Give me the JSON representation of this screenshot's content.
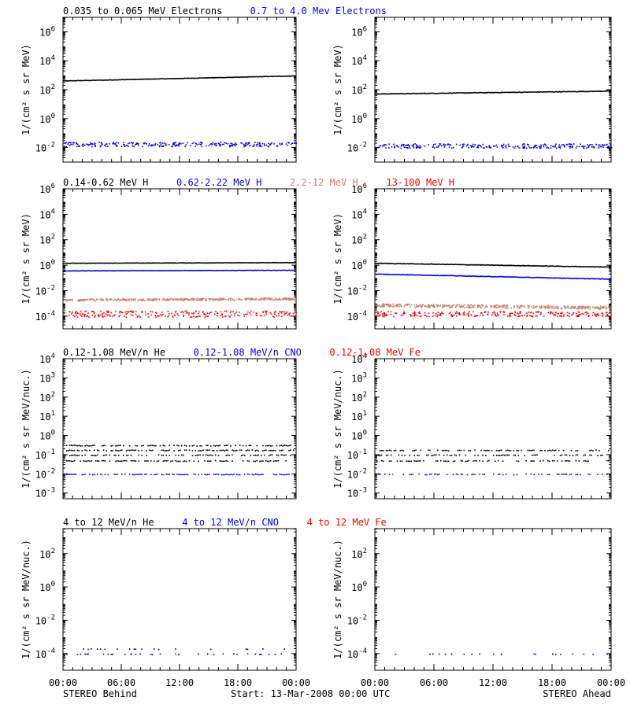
{
  "colors": {
    "black": "#000000",
    "blue": "#0000ff",
    "tan": "#c8826e",
    "red": "#ff0000",
    "frame": "#000000"
  },
  "footer": {
    "left": "STEREO Behind",
    "center": "Start: 13-Mar-2008 00:00 UTC",
    "right": "STEREO Ahead"
  },
  "xticks": [
    "00:00",
    "06:00",
    "12:00",
    "18:00",
    "00:00"
  ],
  "rows": [
    {
      "legend": [
        {
          "text": "0.035 to 0.065 MeV Electrons",
          "color": "black"
        },
        {
          "text": "0.7 to 4.0 Mev Electrons",
          "color": "blue"
        }
      ],
      "ylabel": "1/(cm² s sr MeV)",
      "ylim_log10": [
        -3,
        7
      ],
      "yticks": [
        {
          "exp": -2,
          "label": "10",
          "sup": "-2"
        },
        {
          "exp": 0,
          "label": "10",
          "sup": "0"
        },
        {
          "exp": 2,
          "label": "10",
          "sup": "2"
        },
        {
          "exp": 4,
          "label": "10",
          "sup": "4"
        },
        {
          "exp": 6,
          "label": "10",
          "sup": "6"
        }
      ]
    },
    {
      "legend": [
        {
          "text": "0.14-0.62 MeV H",
          "color": "black"
        },
        {
          "text": "0.62-2.22 MeV H",
          "color": "blue"
        },
        {
          "text": "2.2-12 MeV H",
          "color": "tan"
        },
        {
          "text": "13-100 MeV H",
          "color": "red"
        }
      ],
      "ylabel": "1/(cm² s sr MeV)",
      "ylim_log10": [
        -5,
        6
      ],
      "yticks": [
        {
          "exp": -4,
          "label": "10",
          "sup": "-4"
        },
        {
          "exp": -2,
          "label": "10",
          "sup": "-2"
        },
        {
          "exp": 0,
          "label": "10",
          "sup": "0"
        },
        {
          "exp": 2,
          "label": "10",
          "sup": "2"
        },
        {
          "exp": 4,
          "label": "10",
          "sup": "4"
        },
        {
          "exp": 6,
          "label": "10",
          "sup": "6"
        }
      ]
    },
    {
      "legend": [
        {
          "text": "0.12-1.08 MeV/n He",
          "color": "black"
        },
        {
          "text": "0.12-1.08 MeV/n CNO",
          "color": "blue"
        },
        {
          "text": "0.12-1.08 MeV Fe",
          "color": "red"
        }
      ],
      "ylabel": "1/(cm² s sr MeV/nuc.)",
      "ylim_log10": [
        -3.3,
        4
      ],
      "yticks": [
        {
          "exp": -3,
          "label": "10",
          "sup": "-3"
        },
        {
          "exp": -2,
          "label": "10",
          "sup": "-2"
        },
        {
          "exp": -1,
          "label": "10",
          "sup": "-1"
        },
        {
          "exp": 0,
          "label": "10",
          "sup": "0"
        },
        {
          "exp": 1,
          "label": "10",
          "sup": "1"
        },
        {
          "exp": 2,
          "label": "10",
          "sup": "2"
        },
        {
          "exp": 3,
          "label": "10",
          "sup": "3"
        },
        {
          "exp": 4,
          "label": "10",
          "sup": "4"
        }
      ]
    },
    {
      "legend": [
        {
          "text": "4 to 12 MeV/n He",
          "color": "black"
        },
        {
          "text": "4 to 12 MeV/n CNO",
          "color": "blue"
        },
        {
          "text": "4 to 12 MeV Fe",
          "color": "red"
        }
      ],
      "ylabel": "1/(cm² s sr MeV/nuc.)",
      "ylim_log10": [
        -5,
        3.5
      ],
      "yticks": [
        {
          "exp": -4,
          "label": "10",
          "sup": "-4"
        },
        {
          "exp": -2,
          "label": "10",
          "sup": "-2"
        },
        {
          "exp": 0,
          "label": "10",
          "sup": "0"
        },
        {
          "exp": 2,
          "label": "10",
          "sup": "2"
        }
      ]
    }
  ],
  "chart_data": [
    {
      "type": "scatter",
      "spacecraft": "STEREO Behind",
      "row": 0,
      "x_hours": [
        0,
        24
      ],
      "series": [
        {
          "name": "0.035 to 0.065 MeV Electrons",
          "color": "black",
          "mode": "line",
          "log10_start": 2.6,
          "log10_end": 2.95,
          "noise": 0.03
        },
        {
          "name": "0.7 to 4.0 Mev Electrons",
          "color": "blue",
          "mode": "dots",
          "log10_start": -1.75,
          "log10_end": -1.75,
          "noise": 0.15
        }
      ]
    },
    {
      "type": "scatter",
      "spacecraft": "STEREO Ahead",
      "row": 0,
      "x_hours": [
        0,
        24
      ],
      "series": [
        {
          "name": "0.035 to 0.065 MeV Electrons",
          "color": "black",
          "mode": "line",
          "log10_start": 1.7,
          "log10_end": 1.9,
          "noise": 0.04
        },
        {
          "name": "0.7 to 4.0 Mev Electrons",
          "color": "blue",
          "mode": "dots",
          "log10_start": -1.85,
          "log10_end": -1.85,
          "noise": 0.15
        }
      ]
    },
    {
      "type": "scatter",
      "spacecraft": "STEREO Behind",
      "row": 1,
      "x_hours": [
        0,
        24
      ],
      "series": [
        {
          "name": "0.14-0.62 MeV H",
          "color": "black",
          "mode": "line",
          "log10_start": 0.15,
          "log10_end": 0.2,
          "noise": 0.03
        },
        {
          "name": "0.62-2.22 MeV H",
          "color": "blue",
          "mode": "line",
          "log10_start": -0.45,
          "log10_end": -0.4,
          "noise": 0.03
        },
        {
          "name": "2.2-12 MeV H",
          "color": "tan",
          "mode": "band",
          "log10_start": -2.7,
          "log10_end": -2.6,
          "noise": 0.08
        },
        {
          "name": "13-100 MeV H",
          "color": "red",
          "mode": "dots",
          "log10_start": -3.8,
          "log10_end": -3.8,
          "noise": 0.25
        }
      ]
    },
    {
      "type": "scatter",
      "spacecraft": "STEREO Ahead",
      "row": 1,
      "x_hours": [
        0,
        24
      ],
      "series": [
        {
          "name": "0.14-0.62 MeV H",
          "color": "black",
          "mode": "line",
          "log10_start": 0.15,
          "log10_end": -0.15,
          "noise": 0.04
        },
        {
          "name": "0.62-2.22 MeV H",
          "color": "blue",
          "mode": "line",
          "log10_start": -0.7,
          "log10_end": -1.1,
          "noise": 0.04
        },
        {
          "name": "2.2-12 MeV H",
          "color": "tan",
          "mode": "band",
          "log10_start": -3.1,
          "log10_end": -3.3,
          "noise": 0.12
        },
        {
          "name": "13-100 MeV H",
          "color": "red",
          "mode": "dots",
          "log10_start": -3.8,
          "log10_end": -3.8,
          "noise": 0.2
        }
      ]
    },
    {
      "type": "scatter",
      "spacecraft": "STEREO Behind",
      "row": 2,
      "x_hours": [
        0,
        24
      ],
      "series": [
        {
          "name": "0.12-1.08 MeV/n He",
          "color": "black",
          "mode": "levels",
          "levels": [
            -1.3,
            -1.0,
            -0.75,
            -0.5
          ],
          "density": 0.55
        },
        {
          "name": "0.12-1.08 MeV/n CNO",
          "color": "blue",
          "mode": "levels",
          "levels": [
            -2.0
          ],
          "density": 0.6
        },
        {
          "name": "0.12-1.08 MeV Fe",
          "color": "red",
          "mode": "levels",
          "levels": [
            -2.0
          ],
          "density": 0.03
        }
      ]
    },
    {
      "type": "scatter",
      "spacecraft": "STEREO Ahead",
      "row": 2,
      "x_hours": [
        0,
        24
      ],
      "series": [
        {
          "name": "0.12-1.08 MeV/n He",
          "color": "black",
          "mode": "levels",
          "levels": [
            -1.3,
            -1.0,
            -0.75
          ],
          "density": 0.45
        },
        {
          "name": "0.12-1.08 MeV/n CNO",
          "color": "blue",
          "mode": "levels",
          "levels": [
            -2.0
          ],
          "density": 0.45
        },
        {
          "name": "0.12-1.08 MeV Fe",
          "color": "red",
          "mode": "levels",
          "levels": [
            -2.0
          ],
          "density": 0.03
        }
      ]
    },
    {
      "type": "scatter",
      "spacecraft": "STEREO Behind",
      "row": 3,
      "x_hours": [
        0,
        24
      ],
      "series": [
        {
          "name": "4 to 12 MeV/n He",
          "color": "black",
          "mode": "levels",
          "levels": [
            -4.0,
            -3.7
          ],
          "density": 0.12
        },
        {
          "name": "4 to 12 MeV/n CNO",
          "color": "blue",
          "mode": "levels",
          "levels": [
            -4.0
          ],
          "density": 0.1
        },
        {
          "name": "4 to 12 MeV Fe",
          "color": "red",
          "mode": "levels",
          "levels": [
            -4.0
          ],
          "density": 0.0
        }
      ]
    },
    {
      "type": "scatter",
      "spacecraft": "STEREO Ahead",
      "row": 3,
      "x_hours": [
        0,
        24
      ],
      "series": [
        {
          "name": "4 to 12 MeV/n He",
          "color": "black",
          "mode": "levels",
          "levels": [
            -4.0
          ],
          "density": 0.03
        },
        {
          "name": "4 to 12 MeV/n CNO",
          "color": "blue",
          "mode": "levels",
          "levels": [
            -4.0
          ],
          "density": 0.08
        },
        {
          "name": "4 to 12 MeV Fe",
          "color": "red",
          "mode": "levels",
          "levels": [
            -4.0
          ],
          "density": 0.0
        }
      ]
    }
  ]
}
